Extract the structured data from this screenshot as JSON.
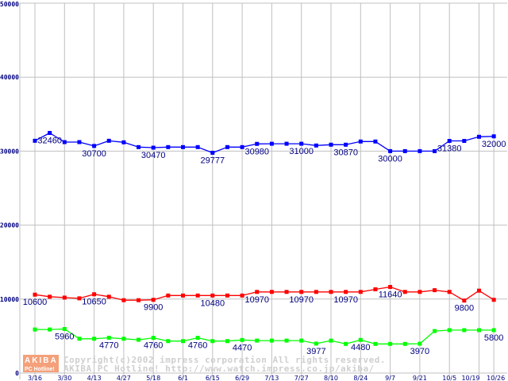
{
  "chart_data": {
    "type": "line",
    "title": "",
    "xlabel": "",
    "ylabel": "",
    "ylim": [
      0,
      50000
    ],
    "grid": true,
    "yticks": [
      "0",
      "10000",
      "20000",
      "30000",
      "40000",
      "50000"
    ],
    "xtick_labels": [
      "3/16",
      "3/30",
      "4/13",
      "4/27",
      "5/18",
      "6/1",
      "6/15",
      "6/29",
      "7/13",
      "7/27",
      "8/10",
      "8/24",
      "9/7",
      "9/21",
      "10/5",
      "10/19",
      "10/26"
    ],
    "xtick_indices": [
      0,
      2,
      4,
      6,
      8,
      10,
      12,
      14,
      16,
      18,
      20,
      22,
      24,
      26,
      28,
      30,
      31
    ],
    "point_count": 32,
    "series": [
      {
        "name": "blue",
        "color": "#0000ff",
        "values": [
          31400,
          32460,
          31220,
          31220,
          30700,
          31400,
          31190,
          30545,
          30470,
          30545,
          30545,
          30545,
          29777,
          30545,
          30545,
          30980,
          31000,
          31000,
          31000,
          30760,
          30870,
          30870,
          31300,
          31300,
          30000,
          30000,
          30000,
          30000,
          31380,
          31380,
          31940,
          32000
        ],
        "labels": [
          {
            "index": 1,
            "text": "32460"
          },
          {
            "index": 4,
            "text": "30700"
          },
          {
            "index": 8,
            "text": "30470"
          },
          {
            "index": 12,
            "text": "29777"
          },
          {
            "index": 15,
            "text": "30980"
          },
          {
            "index": 18,
            "text": "31000"
          },
          {
            "index": 21,
            "text": "30870"
          },
          {
            "index": 24,
            "text": "30000"
          },
          {
            "index": 28,
            "text": "31380"
          },
          {
            "index": 31,
            "text": "32000"
          }
        ]
      },
      {
        "name": "red",
        "color": "#ff0000",
        "values": [
          10600,
          10320,
          10200,
          10100,
          10650,
          10320,
          9850,
          9850,
          9900,
          10480,
          10480,
          10480,
          10480,
          10480,
          10480,
          10970,
          10970,
          10970,
          10970,
          10970,
          10970,
          10970,
          10970,
          11320,
          11640,
          10970,
          10970,
          11200,
          10970,
          9800,
          11140,
          9900
        ],
        "labels": [
          {
            "index": 0,
            "text": "10600"
          },
          {
            "index": 4,
            "text": "10650"
          },
          {
            "index": 8,
            "text": "9900"
          },
          {
            "index": 12,
            "text": "10480"
          },
          {
            "index": 15,
            "text": "10970"
          },
          {
            "index": 18,
            "text": "10970"
          },
          {
            "index": 21,
            "text": "10970"
          },
          {
            "index": 24,
            "text": "11640"
          },
          {
            "index": 29,
            "text": "9800"
          }
        ]
      },
      {
        "name": "green",
        "color": "#00ff00",
        "values": [
          5890,
          5890,
          5960,
          4640,
          4640,
          4770,
          4640,
          4500,
          4760,
          4320,
          4320,
          4760,
          4320,
          4320,
          4470,
          4390,
          4390,
          4390,
          4390,
          3977,
          4390,
          3940,
          4480,
          3940,
          3940,
          3940,
          3970,
          5680,
          5800,
          5800,
          5800,
          5800
        ],
        "labels": [
          {
            "index": 2,
            "text": "5960"
          },
          {
            "index": 5,
            "text": "4770"
          },
          {
            "index": 8,
            "text": "4760"
          },
          {
            "index": 11,
            "text": "4760"
          },
          {
            "index": 14,
            "text": "4470"
          },
          {
            "index": 19,
            "text": "3977"
          },
          {
            "index": 22,
            "text": "4480"
          },
          {
            "index": 26,
            "text": "3970"
          },
          {
            "index": 31,
            "text": "5800"
          }
        ]
      }
    ]
  },
  "watermark": {
    "logo_top": "AKIBA",
    "logo_bottom": "PC Hotline!",
    "line1": "Copyright(c)2002 impress corporation All rights reserved.",
    "line2": "AKIBA PC Hotline!  http://www.watch.impress.co.jp/akiba/"
  },
  "colors": {
    "grid": "#c0c0c0",
    "text": "#000080",
    "logo": "#f4a07a"
  }
}
